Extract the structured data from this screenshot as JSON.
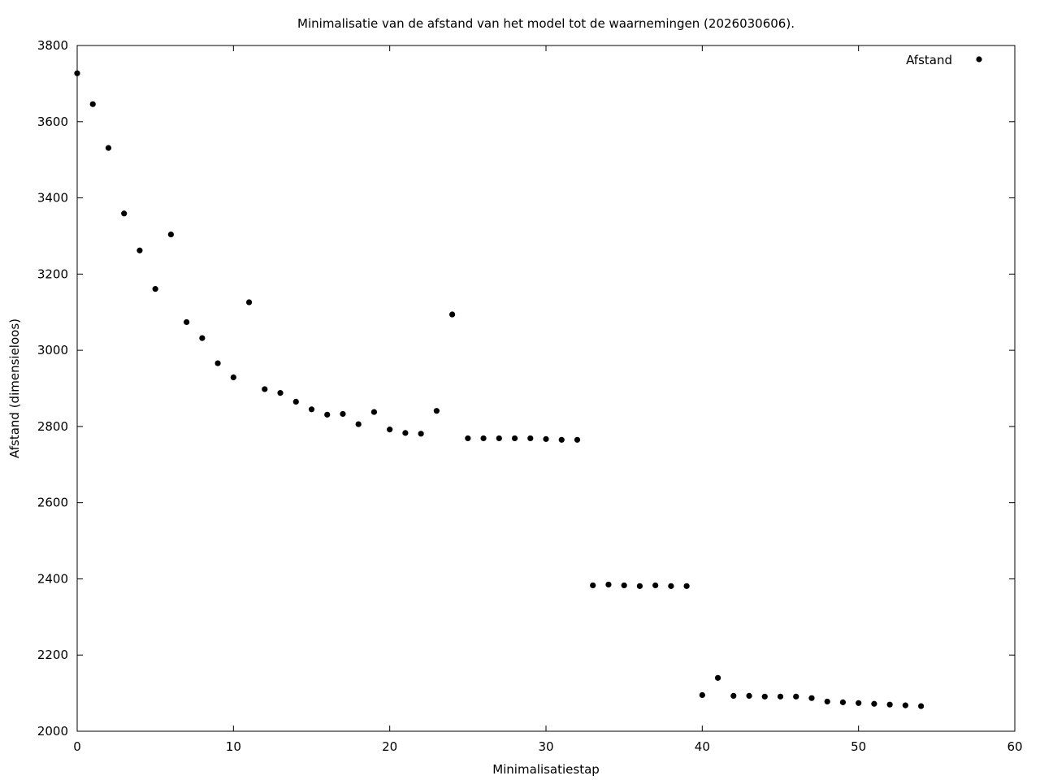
{
  "chart_data": {
    "type": "scatter",
    "title": "Minimalisatie van de afstand van het model tot de waarnemingen (2026030606).",
    "xlabel": "Minimalisatiestap",
    "ylabel": "Afstand (dimensieloos)",
    "xlim": [
      0,
      60
    ],
    "ylim": [
      2000,
      3800
    ],
    "xticks": [
      "0",
      "10",
      "20",
      "30",
      "40",
      "50",
      "60"
    ],
    "yticks": [
      "2000",
      "2200",
      "2400",
      "2600",
      "2800",
      "3000",
      "3200",
      "3400",
      "3600",
      "3800"
    ],
    "grid": false,
    "legend_position": "top-right",
    "series": [
      {
        "name": "Afstand",
        "color": "#000000",
        "x": [
          0,
          1,
          2,
          3,
          4,
          5,
          6,
          7,
          8,
          9,
          10,
          11,
          12,
          13,
          14,
          15,
          16,
          17,
          18,
          19,
          20,
          21,
          22,
          23,
          24,
          25,
          26,
          27,
          28,
          29,
          30,
          31,
          32,
          33,
          34,
          35,
          36,
          37,
          38,
          39,
          40,
          41,
          42,
          43,
          44,
          45,
          46,
          47,
          48,
          49,
          50,
          51,
          52,
          53,
          54
        ],
        "y": [
          3727,
          3646,
          3531,
          3359,
          3262,
          3161,
          3304,
          3074,
          3032,
          2966,
          2929,
          3126,
          2898,
          2888,
          2865,
          2845,
          2831,
          2833,
          2806,
          2838,
          2792,
          2783,
          2781,
          2841,
          3094,
          2769,
          2769,
          2769,
          2769,
          2769,
          2767,
          2765,
          2765,
          2383,
          2385,
          2383,
          2381,
          2383,
          2381,
          2381,
          2095,
          2140,
          2093,
          2093,
          2091,
          2091,
          2091,
          2087,
          2078,
          2076,
          2074,
          2072,
          2070,
          2068,
          2066
        ]
      }
    ]
  }
}
